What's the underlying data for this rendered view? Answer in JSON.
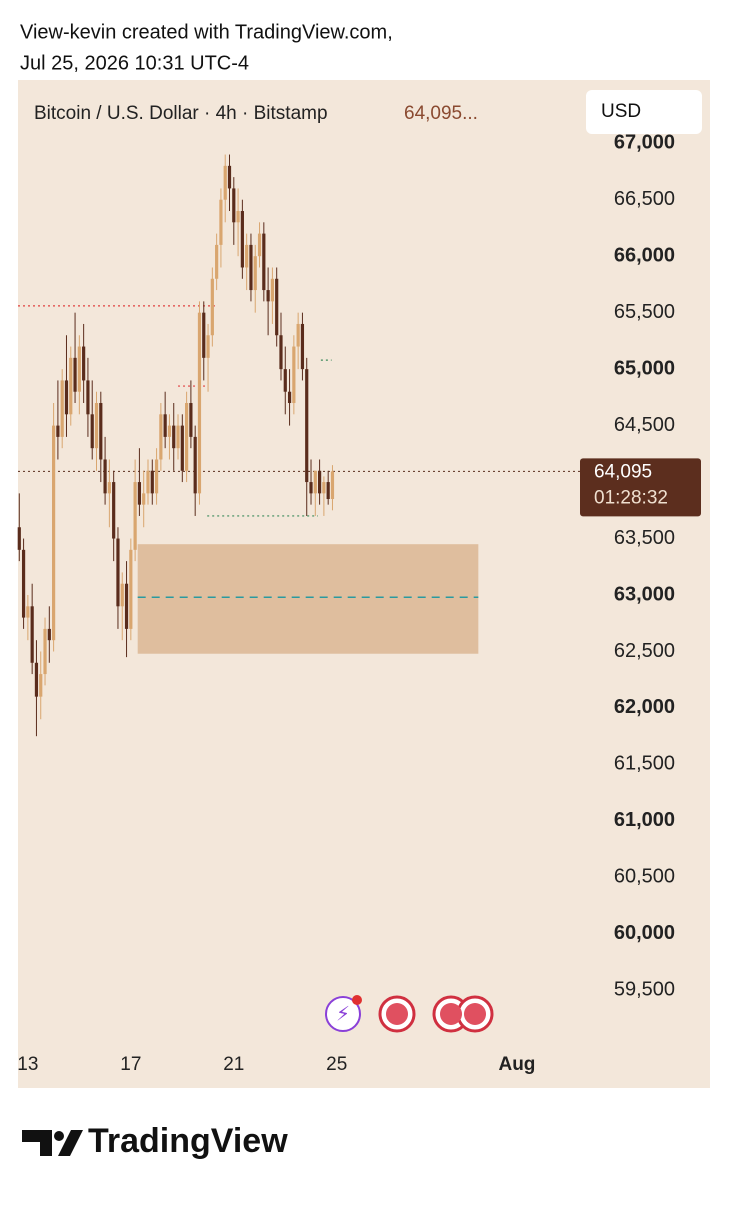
{
  "header": {
    "line1": "View-kevin created with TradingView.com,",
    "line2": "Jul 25, 2026 10:31 UTC-4"
  },
  "footer": {
    "brand": "TradingView"
  },
  "chart_data": {
    "type": "candlestick",
    "title": "Bitcoin / U.S. Dollar · 4h · Bitstamp",
    "legend_value": "64,095...",
    "currency": "USD",
    "up_color": "#d9a66f",
    "down_color": "#5a2c1c",
    "background": "#f3e7da",
    "x": [
      -2,
      -1,
      0,
      1,
      2,
      3,
      4,
      5,
      6,
      7,
      8,
      9,
      10,
      11,
      12,
      13,
      14,
      15,
      16,
      17,
      18,
      19,
      20,
      21,
      22,
      23,
      24,
      25,
      26,
      27,
      28,
      29,
      30,
      31,
      32,
      33,
      34,
      35,
      36,
      37,
      38,
      39,
      40,
      41,
      42,
      43,
      44,
      45,
      46,
      47,
      48,
      49,
      50,
      51,
      52,
      53,
      54,
      55,
      56,
      57,
      58,
      59,
      60,
      61,
      62,
      63,
      64,
      65,
      66,
      67,
      68,
      69,
      70,
      71
    ],
    "ohlc": [
      [
        63600,
        63900,
        63300,
        63400
      ],
      [
        63400,
        63500,
        62700,
        62800
      ],
      [
        62800,
        63000,
        62600,
        62900
      ],
      [
        62900,
        63100,
        62300,
        62400
      ],
      [
        62400,
        62600,
        61750,
        62100
      ],
      [
        62100,
        62500,
        61900,
        62300
      ],
      [
        62300,
        62800,
        62200,
        62700
      ],
      [
        62700,
        62900,
        62400,
        62600
      ],
      [
        62600,
        64700,
        62500,
        64500
      ],
      [
        64500,
        64900,
        64200,
        64400
      ],
      [
        64400,
        65000,
        64300,
        64900
      ],
      [
        64900,
        65300,
        64400,
        64600
      ],
      [
        64600,
        65200,
        64500,
        65100
      ],
      [
        65100,
        65500,
        64700,
        64800
      ],
      [
        64800,
        65300,
        64600,
        65200
      ],
      [
        65200,
        65400,
        64700,
        64900
      ],
      [
        64900,
        65100,
        64400,
        64600
      ],
      [
        64600,
        64900,
        64200,
        64300
      ],
      [
        64300,
        64800,
        64100,
        64700
      ],
      [
        64700,
        64800,
        64000,
        64200
      ],
      [
        64200,
        64400,
        63800,
        63900
      ],
      [
        63900,
        64200,
        63600,
        64000
      ],
      [
        64000,
        64100,
        63300,
        63500
      ],
      [
        63500,
        63600,
        62700,
        62900
      ],
      [
        62900,
        63200,
        62600,
        63100
      ],
      [
        63100,
        63300,
        62450,
        62700
      ],
      [
        62700,
        63500,
        62600,
        63400
      ],
      [
        63400,
        64200,
        63300,
        64000
      ],
      [
        64000,
        64300,
        63700,
        63800
      ],
      [
        63800,
        64100,
        63600,
        63900
      ],
      [
        63900,
        64200,
        63800,
        64100
      ],
      [
        64100,
        64200,
        63800,
        63900
      ],
      [
        63900,
        64300,
        63800,
        64200
      ],
      [
        64200,
        64700,
        64100,
        64600
      ],
      [
        64600,
        64800,
        64300,
        64400
      ],
      [
        64400,
        64600,
        64200,
        64500
      ],
      [
        64500,
        64700,
        64100,
        64300
      ],
      [
        64300,
        64600,
        64200,
        64500
      ],
      [
        64500,
        64600,
        64000,
        64100
      ],
      [
        64100,
        64800,
        64000,
        64700
      ],
      [
        64700,
        64900,
        64300,
        64400
      ],
      [
        64400,
        64500,
        63700,
        63900
      ],
      [
        63900,
        65600,
        63800,
        65500
      ],
      [
        65500,
        65600,
        64900,
        65100
      ],
      [
        65100,
        65400,
        64800,
        65300
      ],
      [
        65300,
        65900,
        65200,
        65800
      ],
      [
        65800,
        66200,
        65700,
        66100
      ],
      [
        66100,
        66600,
        65900,
        66500
      ],
      [
        66500,
        66900,
        66300,
        66800
      ],
      [
        66800,
        66900,
        66400,
        66600
      ],
      [
        66600,
        66700,
        66100,
        66300
      ],
      [
        66300,
        66600,
        66000,
        66400
      ],
      [
        66400,
        66500,
        65800,
        65900
      ],
      [
        65900,
        66200,
        65700,
        66100
      ],
      [
        66100,
        66200,
        65600,
        65700
      ],
      [
        65700,
        66100,
        65500,
        66000
      ],
      [
        66000,
        66300,
        65900,
        66200
      ],
      [
        66200,
        66300,
        65600,
        65700
      ],
      [
        65700,
        65900,
        65300,
        65600
      ],
      [
        65600,
        65900,
        65400,
        65800
      ],
      [
        65800,
        65900,
        65200,
        65300
      ],
      [
        65300,
        65500,
        64900,
        65000
      ],
      [
        65000,
        65200,
        64600,
        64800
      ],
      [
        64800,
        65000,
        64500,
        64700
      ],
      [
        64700,
        65300,
        64600,
        65200
      ],
      [
        65200,
        65500,
        65000,
        65400
      ],
      [
        65400,
        65500,
        64900,
        65000
      ],
      [
        65000,
        65100,
        63700,
        64000
      ],
      [
        64000,
        64200,
        63800,
        63900
      ],
      [
        63900,
        64100,
        63700,
        64100
      ],
      [
        64100,
        64200,
        63800,
        63900
      ],
      [
        63900,
        64050,
        63700,
        64000
      ],
      [
        64000,
        64100,
        63800,
        63850
      ],
      [
        63850,
        64150,
        63750,
        64095
      ]
    ],
    "xlim": [
      -2.3,
      159
    ],
    "xticks": [
      {
        "value": 0,
        "label": "13"
      },
      {
        "value": 24,
        "label": "17"
      },
      {
        "value": 48,
        "label": "21"
      },
      {
        "value": 72,
        "label": "25"
      },
      {
        "value": 114,
        "label": "Aug"
      }
    ],
    "ylim": [
      59060,
      67560
    ],
    "yticks": [
      {
        "value": 59500,
        "label": "59,500"
      },
      {
        "value": 60000,
        "label": "60,000"
      },
      {
        "value": 60500,
        "label": "60,500"
      },
      {
        "value": 61000,
        "label": "61,000"
      },
      {
        "value": 61500,
        "label": "61,500"
      },
      {
        "value": 62000,
        "label": "62,000"
      },
      {
        "value": 62500,
        "label": "62,500"
      },
      {
        "value": 63000,
        "label": "63,000"
      },
      {
        "value": 63500,
        "label": "63,500"
      },
      {
        "value": 64500,
        "label": "64,500"
      },
      {
        "value": 65000,
        "label": "65,000"
      },
      {
        "value": 65500,
        "label": "65,500"
      },
      {
        "value": 66000,
        "label": "66,000"
      },
      {
        "value": 66500,
        "label": "66,500"
      },
      {
        "value": 67000,
        "label": "67,000"
      }
    ],
    "last_price": {
      "value": 64095,
      "label": "64,095"
    },
    "countdown": "01:28:32",
    "zone": {
      "x_from": 25.6,
      "x_to": 105,
      "top": 63450,
      "bottom": 62480,
      "mid": 62980,
      "color": "#dfbe9e",
      "mid_color": "#2a9aa0"
    },
    "levels": [
      {
        "value": 65560,
        "x_from": -2.3,
        "x_to": 43.6,
        "color": "#e04040"
      },
      {
        "value": 64850,
        "x_from": 35,
        "x_to": 41.3,
        "color": "#e04040"
      },
      {
        "value": 63700,
        "x_from": 41.8,
        "x_to": 67.6,
        "color": "#3a8a5a"
      },
      {
        "value": 65080,
        "x_from": 68.3,
        "x_to": 70.8,
        "color": "#3a8a5a"
      }
    ]
  }
}
